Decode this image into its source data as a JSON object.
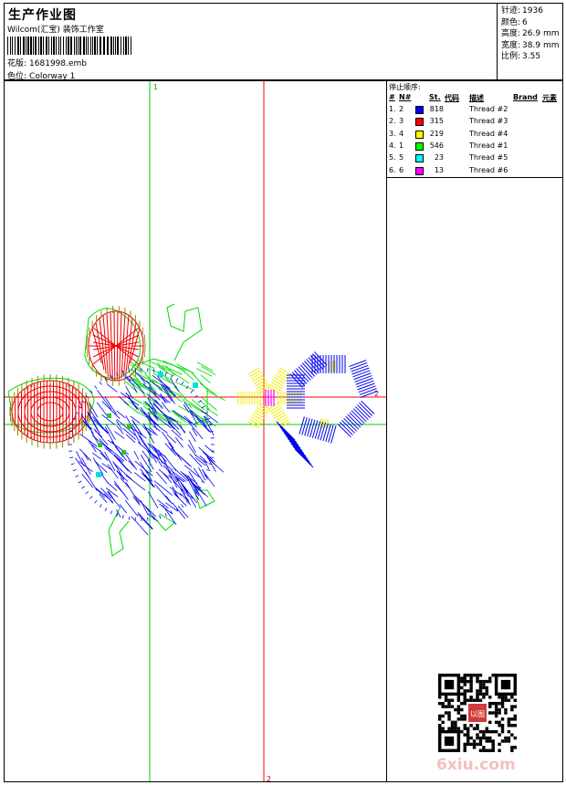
{
  "header": {
    "title": "生产作业图",
    "company": "Wilcom(汇宝) 装饰工作室",
    "design_label": "花版:",
    "design_value": "1681998.emb",
    "colorway_label": "色位:",
    "colorway_value": "Colorway 1"
  },
  "stats": [
    {
      "label": "针迹:",
      "value": "1936"
    },
    {
      "label": "颜色:",
      "value": "6"
    },
    {
      "label": "高度:",
      "value": "26.9 mm"
    },
    {
      "label": "宽度:",
      "value": "38.9 mm"
    },
    {
      "label": "比例:",
      "value": "3.55"
    }
  ],
  "stop_sequence": {
    "title": "停止顺序:",
    "headers": {
      "num": "#",
      "n": "N#",
      "st": "St.",
      "code": "代码",
      "desc": "描述",
      "brand": "Brand",
      "element": "元素"
    },
    "rows": [
      {
        "num": "1.",
        "n": "2",
        "color": "#0000ff",
        "st": "818",
        "desc": "Thread #2"
      },
      {
        "num": "2.",
        "n": "3",
        "color": "#ff0000",
        "st": "315",
        "desc": "Thread #3"
      },
      {
        "num": "3.",
        "n": "4",
        "color": "#ffff00",
        "st": "219",
        "desc": "Thread #4"
      },
      {
        "num": "4.",
        "n": "1",
        "color": "#00ff00",
        "st": "546",
        "desc": "Thread #1"
      },
      {
        "num": "5.",
        "n": "5",
        "color": "#00ffff",
        "st": "23",
        "desc": "Thread #5"
      },
      {
        "num": "6.",
        "n": "6",
        "color": "#ff00ff",
        "st": "13",
        "desc": "Thread #6"
      }
    ]
  },
  "canvas": {
    "v_axis_green_label": "1",
    "v_axis_red_label": "2",
    "h_axis_red_label": "2"
  },
  "watermark": "6xiu.com",
  "qr_badge_text": "以图"
}
